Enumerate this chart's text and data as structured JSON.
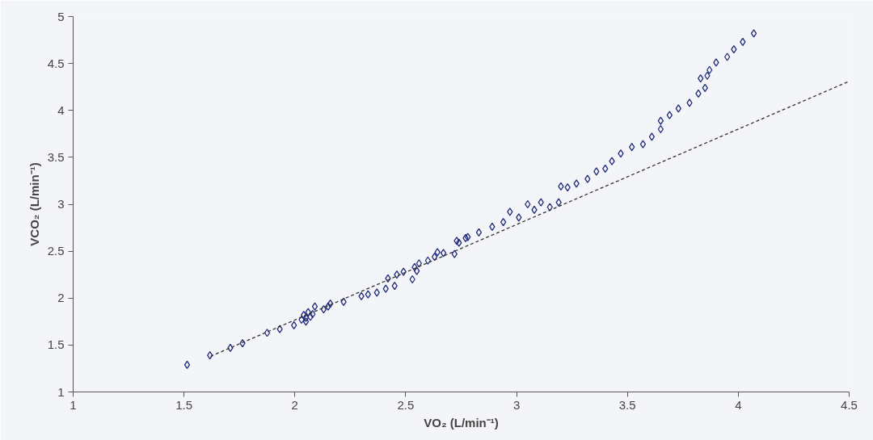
{
  "chart_data": {
    "type": "scatter",
    "xlabel": "VO₂ (L/min⁻¹)",
    "ylabel": "VCO₂ (L/min⁻¹)",
    "xlim": [
      1,
      4.5
    ],
    "xticks": [
      1,
      1.5,
      2,
      2.5,
      3,
      3.5,
      4,
      4.5
    ],
    "ylim": [
      1,
      5
    ],
    "yticks": [
      1,
      1.5,
      2,
      2.5,
      3,
      3.5,
      4,
      4.5,
      5
    ],
    "grid": false,
    "series": [
      {
        "color": "#1f2a7a",
        "marker": "diamond",
        "x": [
          1.514,
          1.617,
          1.709,
          1.764,
          1.875,
          1.932,
          1.996,
          2.03,
          2.04,
          2.05,
          2.06,
          2.07,
          2.08,
          2.05,
          2.09,
          2.13,
          2.16,
          2.15,
          2.22,
          2.3,
          2.33,
          2.37,
          2.41,
          2.45,
          2.42,
          2.46,
          2.49,
          2.53,
          2.54,
          2.56,
          2.6,
          2.63,
          2.67,
          2.72,
          2.74,
          2.77,
          2.55,
          2.643,
          2.73,
          2.78,
          2.83,
          2.89,
          2.94,
          2.97,
          3.01,
          3.05,
          3.08,
          3.11,
          3.15,
          3.19,
          3.2,
          3.23,
          3.27,
          3.32,
          3.36,
          3.4,
          3.43,
          3.47,
          3.52,
          3.57,
          3.61,
          3.65,
          3.65,
          3.69,
          3.73,
          3.78,
          3.82,
          3.85,
          3.83,
          3.86,
          3.87,
          3.9,
          3.95,
          3.98,
          4.02,
          4.07
        ],
        "values": [
          1.29,
          1.39,
          1.47,
          1.52,
          1.63,
          1.67,
          1.71,
          1.77,
          1.82,
          1.79,
          1.85,
          1.8,
          1.83,
          1.75,
          1.91,
          1.88,
          1.94,
          1.91,
          1.96,
          2.02,
          2.04,
          2.06,
          2.1,
          2.13,
          2.21,
          2.25,
          2.28,
          2.2,
          2.33,
          2.37,
          2.4,
          2.44,
          2.48,
          2.47,
          2.59,
          2.64,
          2.29,
          2.49,
          2.61,
          2.65,
          2.7,
          2.76,
          2.81,
          2.92,
          2.86,
          3.0,
          2.94,
          3.02,
          2.97,
          3.02,
          3.19,
          3.18,
          3.22,
          3.27,
          3.35,
          3.38,
          3.46,
          3.54,
          3.61,
          3.64,
          3.72,
          3.8,
          3.89,
          3.95,
          4.02,
          4.08,
          4.18,
          4.24,
          4.34,
          4.37,
          4.43,
          4.51,
          4.57,
          4.65,
          4.73,
          4.82
        ]
      },
      {
        "type": "line",
        "color": "#333333",
        "line_style": "dashed",
        "x": [
          1.62,
          4.5
        ],
        "values": [
          1.38,
          4.31
        ]
      }
    ]
  }
}
